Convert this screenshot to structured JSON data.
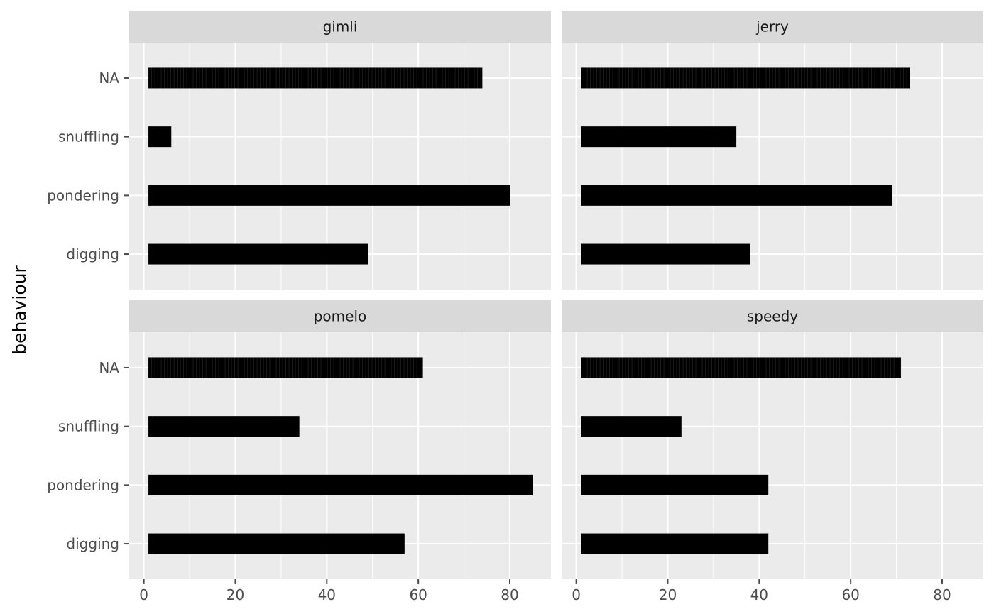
{
  "chart_data": {
    "type": "bar",
    "orientation": "horizontal",
    "facet_layout": "2x2",
    "xlabel": "",
    "ylabel": "behaviour",
    "categories": [
      "digging",
      "pondering",
      "snuffling",
      "NA"
    ],
    "xlim": [
      -3.2,
      89
    ],
    "xticks": [
      0,
      20,
      40,
      60,
      80
    ],
    "bar_start": 1,
    "facets": [
      {
        "name": "gimli",
        "values": {
          "digging": 49,
          "pondering": 80,
          "snuffling": 6,
          "NA": 74
        }
      },
      {
        "name": "jerry",
        "values": {
          "digging": 38,
          "pondering": 69,
          "snuffling": 35,
          "NA": 73
        }
      },
      {
        "name": "pomelo",
        "values": {
          "digging": 57,
          "pondering": 85,
          "snuffling": 34,
          "NA": 61
        }
      },
      {
        "name": "speedy",
        "values": {
          "digging": 42,
          "pondering": 42,
          "snuffling": 23,
          "NA": 71
        }
      }
    ],
    "na_bar_striped": true,
    "grid": true,
    "colors": {
      "panel_bg": "#EBEBEB",
      "strip_bg": "#D9D9D9",
      "grid": "#FFFFFF",
      "bar": "#000000",
      "tick": "#4D4D4D"
    }
  }
}
